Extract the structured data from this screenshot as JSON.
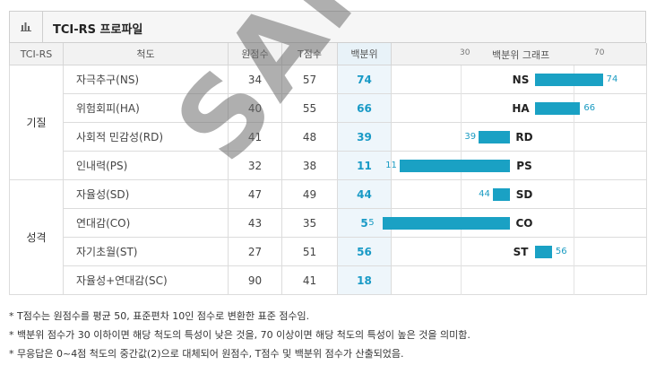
{
  "header": {
    "title": "TCI-RS 프로파일",
    "icon": "bar-chart-icon"
  },
  "columns": {
    "tci": "TCI-RS",
    "scale": "척도",
    "raw": "원점수",
    "t": "T점수",
    "pct": "백분위",
    "graph_title": "백분위 그래프",
    "tick30": "30",
    "tick70": "70"
  },
  "groups": [
    {
      "label": "기질",
      "rows": [
        {
          "scale": "자극추구(NS)",
          "raw": "34",
          "t": "57",
          "pct": "74",
          "code": "NS",
          "value": 74,
          "label": "74"
        },
        {
          "scale": "위험회피(HA)",
          "raw": "40",
          "t": "55",
          "pct": "66",
          "code": "HA",
          "value": 66,
          "label": "66"
        },
        {
          "scale": "사회적 민감성(RD)",
          "raw": "41",
          "t": "48",
          "pct": "39",
          "code": "RD",
          "value": 39,
          "label": "39"
        },
        {
          "scale": "인내력(PS)",
          "raw": "32",
          "t": "38",
          "pct": "11",
          "code": "PS",
          "value": 11,
          "label": "11"
        }
      ]
    },
    {
      "label": "성격",
      "rows": [
        {
          "scale": "자율성(SD)",
          "raw": "47",
          "t": "49",
          "pct": "44",
          "code": "SD",
          "value": 44,
          "label": "44"
        },
        {
          "scale": "연대감(CO)",
          "raw": "43",
          "t": "35",
          "pct": "5",
          "code": "CO",
          "value": 5,
          "label": "5"
        },
        {
          "scale": "자기초월(ST)",
          "raw": "27",
          "t": "51",
          "pct": "56",
          "code": "ST",
          "value": 56,
          "label": "56"
        },
        {
          "scale": "자율성+연대감(SC)",
          "raw": "90",
          "t": "41",
          "pct": "18",
          "code": "",
          "value": null,
          "label": ""
        }
      ]
    }
  ],
  "watermark": "SAMPLE",
  "notes": [
    "* T점수는 원점수를 평균 50, 표준편차 10인 점수로 변환한 표준 점수임.",
    "* 백분위 점수가 30 이하이면 해당 척도의 특성이 낮은 것을, 70 이상이면 해당 척도의 특성이 높은 것을 의미함.",
    "* 무응답은 0~4점 척도의 중간값(2)으로 대체되어 원점수, T점수 및 백분위 점수가 산출되었음."
  ],
  "colors": {
    "bar": "#1aa1c4",
    "pct_text": "#199ac6"
  }
}
